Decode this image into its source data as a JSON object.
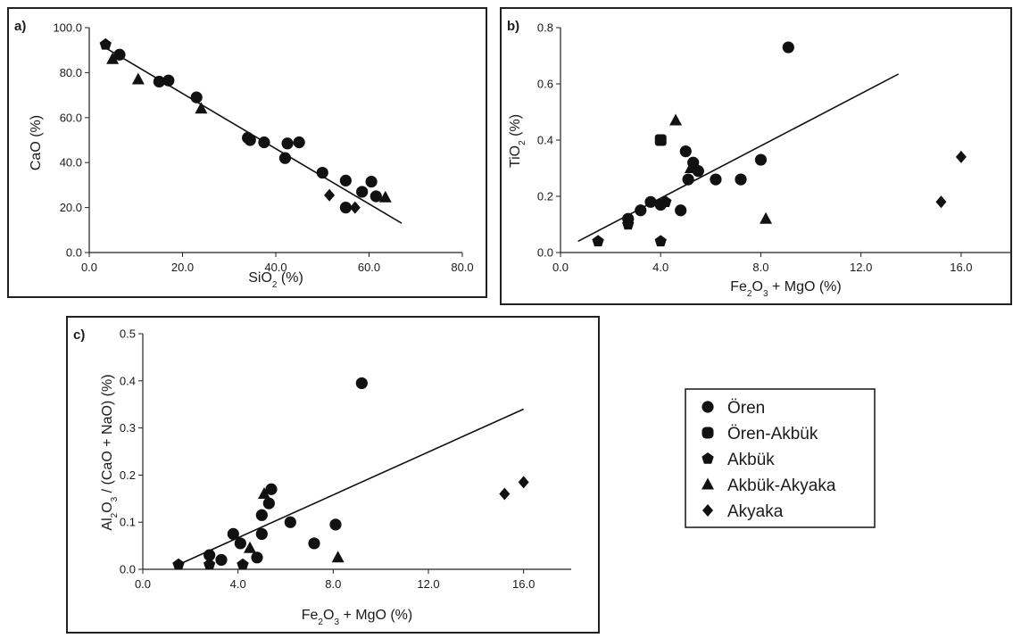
{
  "legend": {
    "entries": [
      {
        "label": "Ören",
        "marker": "circle"
      },
      {
        "label": "Ören-Akbük",
        "marker": "rounded-square"
      },
      {
        "label": "Akbük",
        "marker": "pentagon"
      },
      {
        "label": "Akbük-Akyaka",
        "marker": "triangle"
      },
      {
        "label": "Akyaka",
        "marker": "diamond"
      }
    ]
  },
  "colors": {
    "marker": "#111111",
    "frame": "#222222",
    "line": "#111111"
  },
  "chart_data": [
    {
      "panel": "a)",
      "type": "scatter",
      "xlabel": {
        "main": "SiO",
        "sub": "2",
        "rest": " (%)"
      },
      "ylabel": {
        "main": "CaO (%)"
      },
      "xlim": [
        0,
        80
      ],
      "ylim": [
        0,
        100
      ],
      "xticks": [
        0,
        20,
        40,
        60,
        80
      ],
      "xtick_labels": [
        "0.0",
        "20.0",
        "40.0",
        "60.0",
        "80.0"
      ],
      "yticks": [
        0,
        20,
        40,
        60,
        80,
        100
      ],
      "ytick_labels": [
        "0.0",
        "20.0",
        "40.0",
        "60.0",
        "80.0",
        "100.0"
      ],
      "trendline": {
        "x": [
          3.5,
          67
        ],
        "y": [
          91,
          13
        ]
      },
      "points": [
        {
          "x": 3.5,
          "y": 92.5,
          "m": "pentagon"
        },
        {
          "x": 5.0,
          "y": 86,
          "m": "triangle"
        },
        {
          "x": 6.5,
          "y": 88,
          "m": "circle"
        },
        {
          "x": 10.5,
          "y": 77,
          "m": "triangle"
        },
        {
          "x": 15,
          "y": 76,
          "m": "circle"
        },
        {
          "x": 17,
          "y": 76.5,
          "m": "circle"
        },
        {
          "x": 23,
          "y": 69,
          "m": "circle"
        },
        {
          "x": 24,
          "y": 64,
          "m": "triangle"
        },
        {
          "x": 34,
          "y": 51,
          "m": "circle"
        },
        {
          "x": 34.5,
          "y": 50,
          "m": "circle"
        },
        {
          "x": 37.5,
          "y": 49,
          "m": "circle"
        },
        {
          "x": 42,
          "y": 42,
          "m": "circle"
        },
        {
          "x": 42.5,
          "y": 48.5,
          "m": "circle"
        },
        {
          "x": 45,
          "y": 49,
          "m": "circle"
        },
        {
          "x": 50,
          "y": 35.5,
          "m": "circle"
        },
        {
          "x": 51.5,
          "y": 25.5,
          "m": "diamond"
        },
        {
          "x": 55,
          "y": 32,
          "m": "circle"
        },
        {
          "x": 55,
          "y": 20,
          "m": "circle"
        },
        {
          "x": 57,
          "y": 20,
          "m": "diamond"
        },
        {
          "x": 58.5,
          "y": 27,
          "m": "circle"
        },
        {
          "x": 60.5,
          "y": 31.5,
          "m": "circle"
        },
        {
          "x": 61.5,
          "y": 25,
          "m": "circle"
        },
        {
          "x": 63.5,
          "y": 24.5,
          "m": "triangle"
        }
      ]
    },
    {
      "panel": "b)",
      "type": "scatter",
      "xlabel": {
        "main": "Fe",
        "sub": "2",
        "rest": "O",
        "sub2": "3",
        "rest2": " + MgO (%)"
      },
      "ylabel": {
        "main": "TiO",
        "sub": "2",
        "rest": " (%)"
      },
      "xlim": [
        0,
        18
      ],
      "ylim": [
        0,
        0.8
      ],
      "xticks": [
        0,
        4,
        8,
        12,
        16
      ],
      "xtick_labels": [
        "0.0",
        "4.0",
        "8.0",
        "12.0",
        "16.0"
      ],
      "yticks": [
        0,
        0.2,
        0.4,
        0.6,
        0.8
      ],
      "ytick_labels": [
        "0.0",
        "0.2",
        "0.4",
        "0.6",
        "0.8"
      ],
      "trendline": {
        "x": [
          0.7,
          13.5
        ],
        "y": [
          0.04,
          0.635
        ]
      },
      "points": [
        {
          "x": 1.5,
          "y": 0.04,
          "m": "pentagon"
        },
        {
          "x": 2.7,
          "y": 0.12,
          "m": "circle"
        },
        {
          "x": 2.7,
          "y": 0.1,
          "m": "pentagon"
        },
        {
          "x": 3.2,
          "y": 0.15,
          "m": "circle"
        },
        {
          "x": 3.6,
          "y": 0.18,
          "m": "circle"
        },
        {
          "x": 4.0,
          "y": 0.4,
          "m": "square"
        },
        {
          "x": 4.0,
          "y": 0.17,
          "m": "circle"
        },
        {
          "x": 4.2,
          "y": 0.18,
          "m": "pentagon"
        },
        {
          "x": 4.0,
          "y": 0.04,
          "m": "pentagon"
        },
        {
          "x": 4.6,
          "y": 0.47,
          "m": "triangle"
        },
        {
          "x": 4.8,
          "y": 0.15,
          "m": "circle"
        },
        {
          "x": 5.0,
          "y": 0.36,
          "m": "circle"
        },
        {
          "x": 5.2,
          "y": 0.3,
          "m": "triangle"
        },
        {
          "x": 5.3,
          "y": 0.32,
          "m": "circle"
        },
        {
          "x": 5.1,
          "y": 0.26,
          "m": "circle"
        },
        {
          "x": 5.5,
          "y": 0.29,
          "m": "circle"
        },
        {
          "x": 6.2,
          "y": 0.26,
          "m": "circle"
        },
        {
          "x": 7.2,
          "y": 0.26,
          "m": "circle"
        },
        {
          "x": 8.0,
          "y": 0.33,
          "m": "circle"
        },
        {
          "x": 8.2,
          "y": 0.12,
          "m": "triangle"
        },
        {
          "x": 9.1,
          "y": 0.73,
          "m": "circle"
        },
        {
          "x": 15.2,
          "y": 0.18,
          "m": "diamond"
        },
        {
          "x": 16.0,
          "y": 0.34,
          "m": "diamond"
        }
      ]
    },
    {
      "panel": "c)",
      "type": "scatter",
      "xlabel": {
        "main": "Fe",
        "sub": "2",
        "rest": "O",
        "sub2": "3",
        "rest2": " + MgO (%)"
      },
      "ylabel": {
        "main": "Al",
        "sub": "2",
        "rest": "O",
        "sub2": "3",
        "rest2": " / (CaO + NaO) (%)"
      },
      "xlim": [
        0,
        18
      ],
      "ylim": [
        0,
        0.5
      ],
      "xticks": [
        0,
        4,
        8,
        12,
        16
      ],
      "xtick_labels": [
        "0.0",
        "4.0",
        "8.0",
        "12.0",
        "16.0"
      ],
      "yticks": [
        0,
        0.1,
        0.2,
        0.3,
        0.4,
        0.5
      ],
      "ytick_labels": [
        "0.0",
        "0.1",
        "0.2",
        "0.3",
        "0.4",
        "0.5"
      ],
      "trendline": {
        "x": [
          1.5,
          16.0
        ],
        "y": [
          0.01,
          0.34
        ]
      },
      "points": [
        {
          "x": 1.5,
          "y": 0.01,
          "m": "pentagon"
        },
        {
          "x": 2.8,
          "y": 0.03,
          "m": "circle"
        },
        {
          "x": 2.8,
          "y": 0.01,
          "m": "pentagon"
        },
        {
          "x": 3.3,
          "y": 0.02,
          "m": "circle"
        },
        {
          "x": 3.8,
          "y": 0.075,
          "m": "circle"
        },
        {
          "x": 4.1,
          "y": 0.055,
          "m": "circle"
        },
        {
          "x": 4.2,
          "y": 0.01,
          "m": "pentagon"
        },
        {
          "x": 4.5,
          "y": 0.045,
          "m": "triangle"
        },
        {
          "x": 4.8,
          "y": 0.025,
          "m": "circle"
        },
        {
          "x": 5.0,
          "y": 0.075,
          "m": "circle"
        },
        {
          "x": 5.0,
          "y": 0.115,
          "m": "circle"
        },
        {
          "x": 5.1,
          "y": 0.16,
          "m": "triangle"
        },
        {
          "x": 5.3,
          "y": 0.14,
          "m": "circle"
        },
        {
          "x": 5.4,
          "y": 0.17,
          "m": "circle"
        },
        {
          "x": 6.2,
          "y": 0.1,
          "m": "circle"
        },
        {
          "x": 7.2,
          "y": 0.055,
          "m": "circle"
        },
        {
          "x": 8.1,
          "y": 0.095,
          "m": "circle"
        },
        {
          "x": 8.2,
          "y": 0.025,
          "m": "triangle"
        },
        {
          "x": 9.2,
          "y": 0.395,
          "m": "circle"
        },
        {
          "x": 15.2,
          "y": 0.16,
          "m": "diamond"
        },
        {
          "x": 16.0,
          "y": 0.185,
          "m": "diamond"
        }
      ]
    }
  ]
}
